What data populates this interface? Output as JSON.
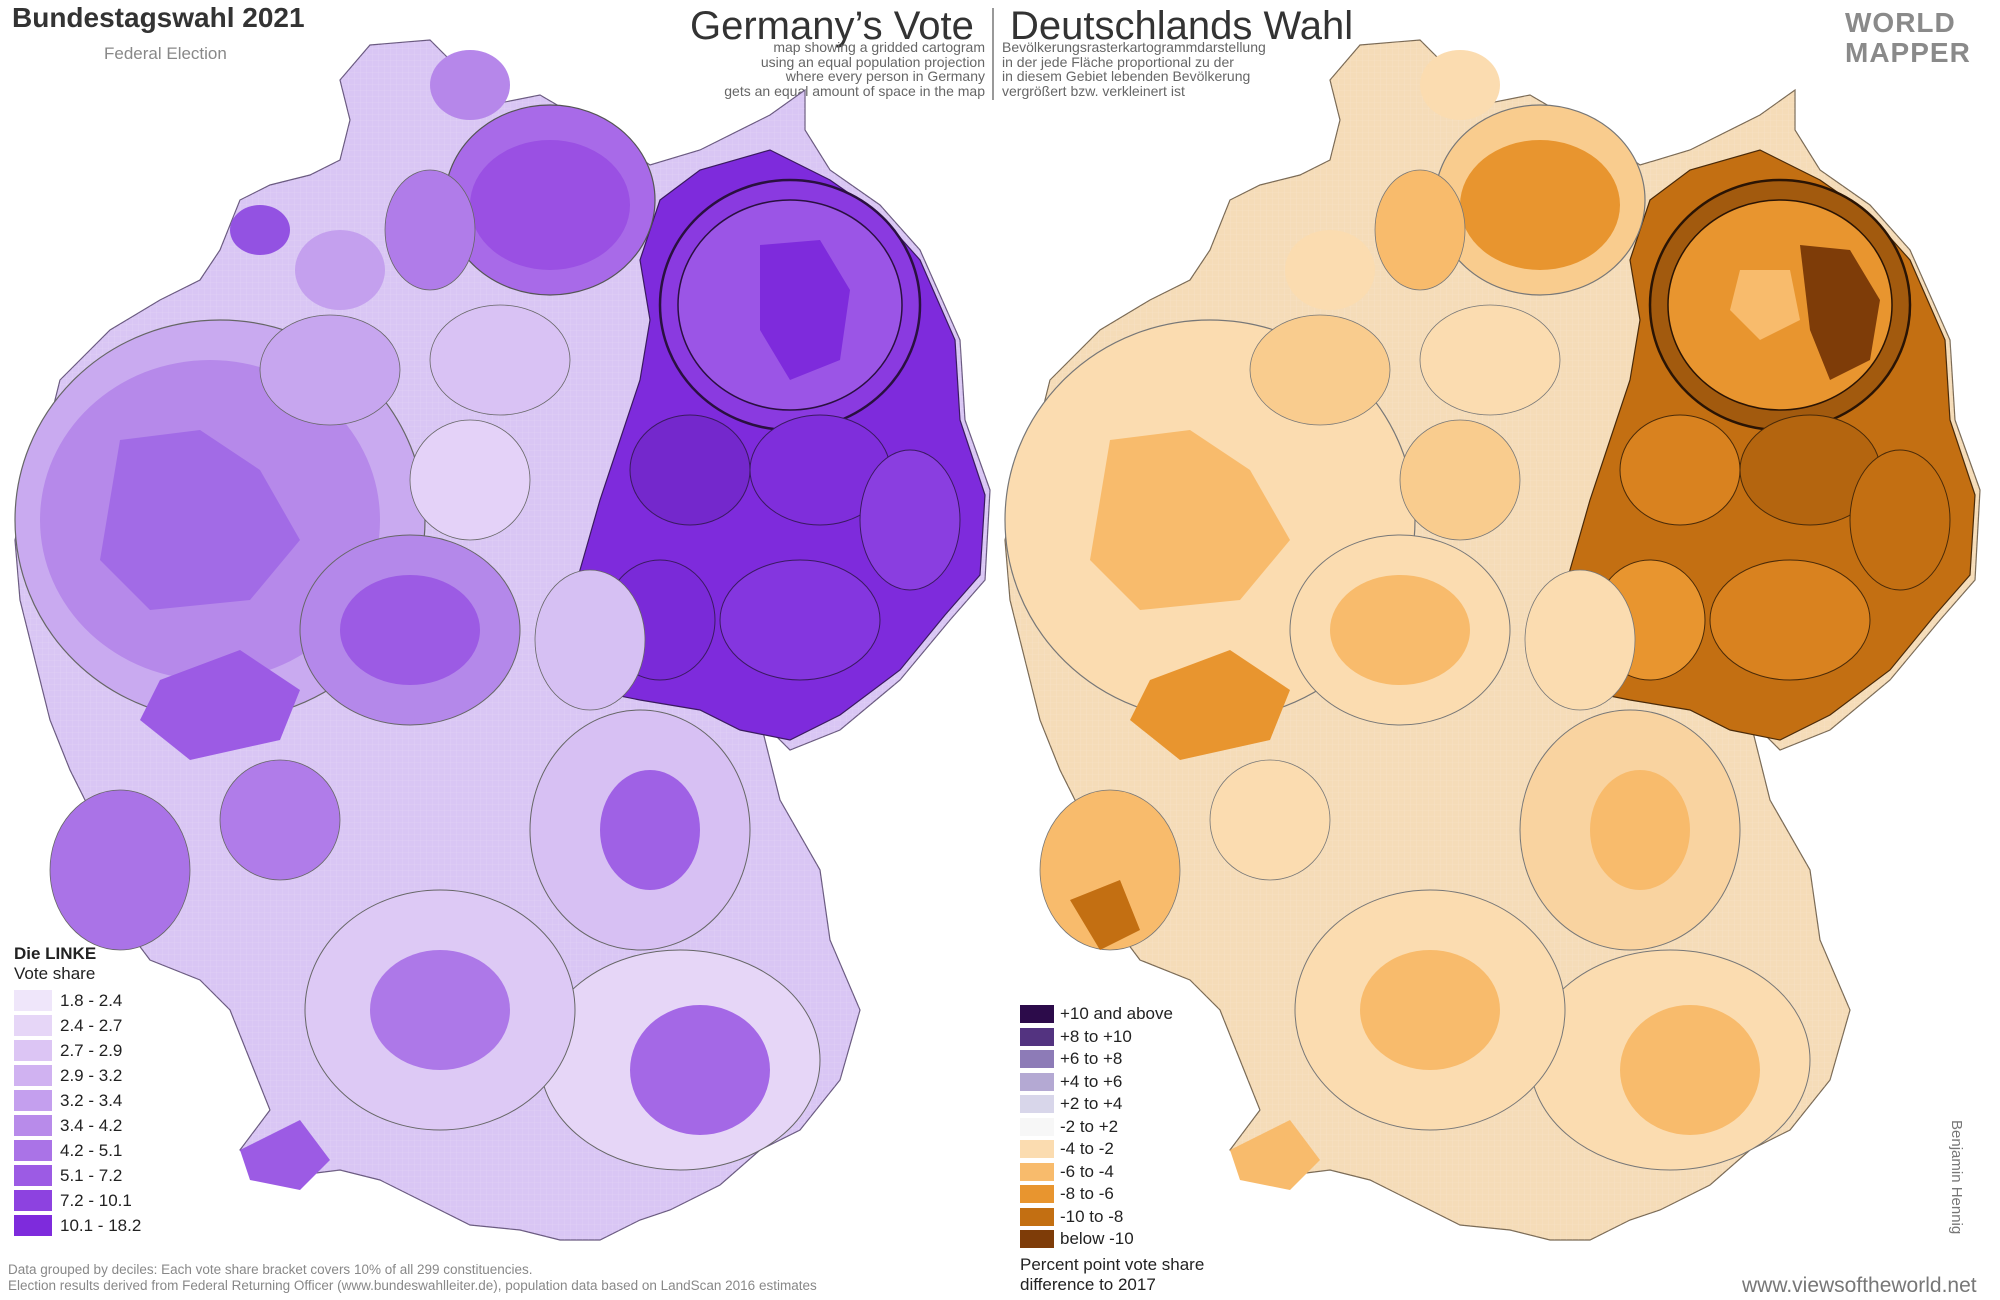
{
  "header": {
    "title": "Bundestagswahl 2021",
    "subtitle": "Federal Election",
    "heading_en": "Germany’s Vote",
    "heading_de": "Deutschlands Wahl",
    "description_en": [
      "map showing a gridded cartogram",
      "using an equal population projection",
      "where every person in Germany",
      "gets an equal amount of space in the map"
    ],
    "description_de": [
      "Bevölkerungsrasterkartogrammdarstellung",
      "in der jede Fläche proportional zu der",
      "in diesem Gebiet lebenden Bevölkerung",
      "vergrößert bzw. verkleinert ist"
    ]
  },
  "logo": {
    "line1": "WORLD",
    "line2": "MAPPER"
  },
  "legend_left": {
    "title": "Die LINKE",
    "subtitle": "Vote share",
    "items": [
      {
        "label": "1.8 - 2.4",
        "color": "#efe6fa"
      },
      {
        "label": "2.4 - 2.7",
        "color": "#e6d6f7"
      },
      {
        "label": "2.7 - 2.9",
        "color": "#dcc5f4"
      },
      {
        "label": "2.9 - 3.2",
        "color": "#d0b2f1"
      },
      {
        "label": "3.2 - 3.4",
        "color": "#c49fee"
      },
      {
        "label": "3.4 - 4.2",
        "color": "#b88bea"
      },
      {
        "label": "4.2 - 5.1",
        "color": "#aa73e7"
      },
      {
        "label": "5.1 - 7.2",
        "color": "#9c5be4"
      },
      {
        "label": "7.2 - 10.1",
        "color": "#8d42e0"
      },
      {
        "label": "10.1 - 18.2",
        "color": "#7e2bdc"
      }
    ]
  },
  "legend_right": {
    "items": [
      {
        "label": "+10 and above",
        "color": "#2c0b4a"
      },
      {
        "label": "+8 to +10",
        "color": "#533380"
      },
      {
        "label": "+6 to +8",
        "color": "#8d7bb7"
      },
      {
        "label": "+4 to +6",
        "color": "#b4a9d3"
      },
      {
        "label": "+2 to +4",
        "color": "#d8d6ea"
      },
      {
        "label": "-2 to +2",
        "color": "#f7f7f7"
      },
      {
        "label": "-4 to -2",
        "color": "#fbdcb0"
      },
      {
        "label": "-6 to -4",
        "color": "#f8bb6c"
      },
      {
        "label": "-8 to -6",
        "color": "#e8952f"
      },
      {
        "label": "-10 to -8",
        "color": "#c36f12"
      },
      {
        "label": "below -10",
        "color": "#7e3c08"
      }
    ],
    "caption_line1": "Percent point vote share",
    "caption_line2": "difference to 2017"
  },
  "footer": {
    "note_line1": "Data grouped by deciles: Each vote share bracket covers 10% of all 299 constituencies.",
    "note_line2": "Election results derived from Federal Returning Officer (www.bundeswahlleiter.de), population data based on LandScan 2016 estimates",
    "website": "www.viewsoftheworld.net",
    "author": "Benjamin Hennig"
  }
}
